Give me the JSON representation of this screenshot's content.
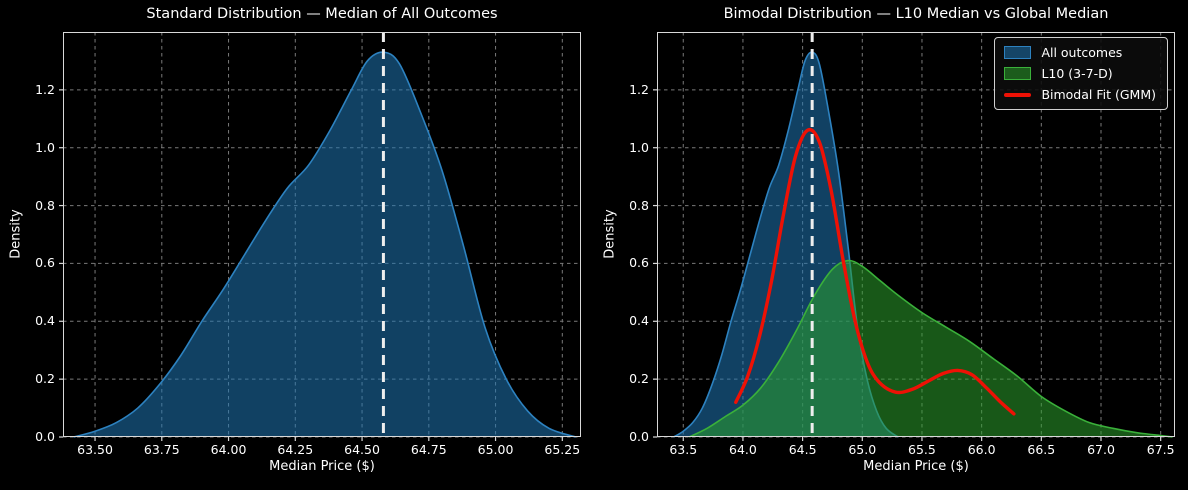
{
  "style": {
    "background": "#000000",
    "text_color": "#ffffff",
    "grid_color": "#7a7a7a",
    "spine_color": "#d9d9d9",
    "median_line_color": "#eeeeee",
    "blue_line": "#2d82c0",
    "blue_fill": "rgba(31,119,180,0.55)",
    "green_line": "#3ab03a",
    "green_fill": "rgba(44,160,44,0.55)",
    "red_line": "#ee1105"
  },
  "chart_data": [
    {
      "type": "area",
      "title": "Standard Distribution — Median of All Outcomes",
      "xlabel": "Median Price ($)",
      "ylabel": "Density",
      "xlim": [
        63.38,
        65.32
      ],
      "ylim": [
        0,
        1.4
      ],
      "grid": true,
      "xticks": [
        {
          "value": 63.5,
          "label": "63.50"
        },
        {
          "value": 63.75,
          "label": "63.75"
        },
        {
          "value": 64.0,
          "label": "64.00"
        },
        {
          "value": 64.25,
          "label": "64.25"
        },
        {
          "value": 64.5,
          "label": "64.50"
        },
        {
          "value": 64.75,
          "label": "64.75"
        },
        {
          "value": 65.0,
          "label": "65.00"
        },
        {
          "value": 65.25,
          "label": "65.25"
        }
      ],
      "yticks": [
        {
          "value": 0.0,
          "label": "0.0"
        },
        {
          "value": 0.2,
          "label": "0.2"
        },
        {
          "value": 0.4,
          "label": "0.4"
        },
        {
          "value": 0.6,
          "label": "0.6"
        },
        {
          "value": 0.8,
          "label": "0.8"
        },
        {
          "value": 1.0,
          "label": "1.0"
        },
        {
          "value": 1.2,
          "label": "1.2"
        }
      ],
      "median_line": {
        "x": 64.58
      },
      "series": [
        {
          "id": "all-outcomes",
          "name": "All outcomes",
          "kind": "area",
          "color_key": "blue",
          "x": [
            63.42,
            63.5,
            63.58,
            63.66,
            63.74,
            63.82,
            63.9,
            63.98,
            64.06,
            64.14,
            64.22,
            64.3,
            64.38,
            64.46,
            64.52,
            64.58,
            64.64,
            64.72,
            64.8,
            64.88,
            64.96,
            65.04,
            65.12,
            65.2,
            65.3
          ],
          "y": [
            0.0,
            0.02,
            0.05,
            0.1,
            0.18,
            0.28,
            0.4,
            0.51,
            0.63,
            0.75,
            0.86,
            0.94,
            1.06,
            1.2,
            1.3,
            1.33,
            1.29,
            1.12,
            0.92,
            0.66,
            0.38,
            0.2,
            0.09,
            0.03,
            0.0
          ]
        }
      ]
    },
    {
      "type": "area",
      "title": "Bimodal Distribution — L10 Median vs Global Median",
      "xlabel": "Median Price ($)",
      "ylabel": "Density",
      "xlim": [
        63.28,
        67.62
      ],
      "ylim": [
        0,
        1.4
      ],
      "grid": true,
      "xticks": [
        {
          "value": 63.5,
          "label": "63.5"
        },
        {
          "value": 64.0,
          "label": "64.0"
        },
        {
          "value": 64.5,
          "label": "64.5"
        },
        {
          "value": 65.0,
          "label": "65.0"
        },
        {
          "value": 65.5,
          "label": "65.5"
        },
        {
          "value": 66.0,
          "label": "66.0"
        },
        {
          "value": 66.5,
          "label": "66.5"
        },
        {
          "value": 67.0,
          "label": "67.0"
        },
        {
          "value": 67.5,
          "label": "67.5"
        }
      ],
      "yticks": [
        {
          "value": 0.0,
          "label": "0.0"
        },
        {
          "value": 0.2,
          "label": "0.2"
        },
        {
          "value": 0.4,
          "label": "0.4"
        },
        {
          "value": 0.6,
          "label": "0.6"
        },
        {
          "value": 0.8,
          "label": "0.8"
        },
        {
          "value": 1.0,
          "label": "1.0"
        },
        {
          "value": 1.2,
          "label": "1.2"
        }
      ],
      "median_line": {
        "x": 64.58
      },
      "series": [
        {
          "id": "all-outcomes",
          "name": "All outcomes",
          "kind": "area",
          "color_key": "blue",
          "x": [
            63.42,
            63.5,
            63.58,
            63.66,
            63.74,
            63.82,
            63.9,
            63.98,
            64.06,
            64.14,
            64.22,
            64.3,
            64.38,
            64.46,
            64.52,
            64.58,
            64.64,
            64.72,
            64.8,
            64.88,
            64.96,
            65.04,
            65.12,
            65.2,
            65.3
          ],
          "y": [
            0.0,
            0.02,
            0.05,
            0.1,
            0.18,
            0.28,
            0.4,
            0.51,
            0.63,
            0.75,
            0.86,
            0.94,
            1.06,
            1.2,
            1.3,
            1.33,
            1.29,
            1.12,
            0.92,
            0.66,
            0.38,
            0.2,
            0.09,
            0.03,
            0.0
          ]
        },
        {
          "id": "l10-3-7-d",
          "name": "L10 (3-7-D)",
          "kind": "area",
          "color_key": "green",
          "x": [
            63.55,
            63.7,
            63.85,
            64.0,
            64.15,
            64.3,
            64.45,
            64.6,
            64.75,
            64.88,
            65.0,
            65.15,
            65.3,
            65.5,
            65.7,
            65.9,
            66.1,
            66.3,
            66.5,
            66.7,
            66.9,
            67.1,
            67.3,
            67.5,
            67.6
          ],
          "y": [
            0.0,
            0.03,
            0.07,
            0.11,
            0.17,
            0.26,
            0.37,
            0.49,
            0.58,
            0.61,
            0.59,
            0.54,
            0.49,
            0.43,
            0.38,
            0.33,
            0.27,
            0.21,
            0.14,
            0.09,
            0.05,
            0.03,
            0.015,
            0.005,
            0.0
          ]
        },
        {
          "id": "bimodal-fit-gmm",
          "name": "Bimodal Fit (GMM)",
          "kind": "line",
          "color_key": "red",
          "x": [
            63.94,
            64.04,
            64.14,
            64.24,
            64.34,
            64.44,
            64.54,
            64.64,
            64.74,
            64.84,
            64.94,
            65.04,
            65.14,
            65.28,
            65.42,
            65.56,
            65.68,
            65.8,
            65.92,
            66.04,
            66.16,
            66.27
          ],
          "y": [
            0.12,
            0.21,
            0.35,
            0.54,
            0.77,
            0.97,
            1.06,
            1.02,
            0.85,
            0.61,
            0.4,
            0.26,
            0.19,
            0.155,
            0.165,
            0.195,
            0.22,
            0.23,
            0.215,
            0.17,
            0.12,
            0.08
          ]
        }
      ],
      "legend": {
        "position": "upper right",
        "items": [
          {
            "id": "all-outcomes",
            "label": "All outcomes",
            "kind": "patch",
            "color_key": "blue"
          },
          {
            "id": "l10-3-7-d",
            "label": "L10 (3-7-D)",
            "kind": "patch",
            "color_key": "green"
          },
          {
            "id": "bimodal-fit-gmm",
            "label": "Bimodal Fit (GMM)",
            "kind": "line",
            "color_key": "red"
          }
        ]
      }
    }
  ]
}
